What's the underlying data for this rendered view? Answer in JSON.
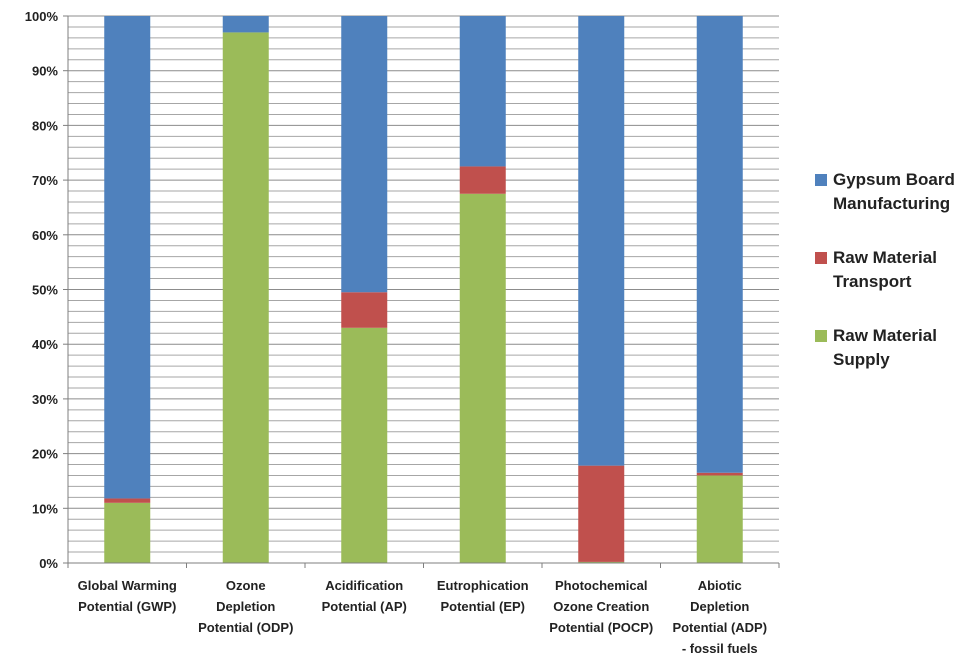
{
  "chart_data": {
    "type": "bar",
    "stacked": true,
    "percent": true,
    "categories": [
      [
        "Global Warming",
        "Potential (GWP)"
      ],
      [
        "Ozone",
        "Depletion",
        "Potential (ODP)"
      ],
      [
        "Acidification",
        "Potential (AP)"
      ],
      [
        "Eutrophication",
        "Potential (EP)"
      ],
      [
        "Photochemical",
        "Ozone Creation",
        "Potential (POCP)"
      ],
      [
        "Abiotic",
        "Depletion",
        "Potential (ADP)",
        "- fossil fuels"
      ]
    ],
    "series": [
      {
        "name": "Raw Material Supply",
        "color": "#9BBB59",
        "values": [
          11,
          97,
          43,
          67.5,
          0.2,
          16
        ]
      },
      {
        "name": "Raw Material Transport",
        "color": "#C0504D",
        "values": [
          0.8,
          0,
          6.5,
          5,
          17.6,
          0.5
        ]
      },
      {
        "name": "Gypsum Board Manufacturing",
        "color": "#4F81BD",
        "values": [
          88.2,
          3,
          50.5,
          27.5,
          82.2,
          83.5
        ]
      }
    ],
    "y_ticks": [
      "0%",
      "10%",
      "20%",
      "30%",
      "40%",
      "50%",
      "60%",
      "70%",
      "80%",
      "90%",
      "100%"
    ],
    "ylim": [
      0,
      100
    ],
    "grid": true,
    "legend_position": "right",
    "legend_labels": [
      {
        "lines": [
          "Gypsum Board",
          "Manufacturing"
        ],
        "color": "#4F81BD"
      },
      {
        "lines": [
          "Raw Material",
          "Transport"
        ],
        "color": "#C0504D"
      },
      {
        "lines": [
          "Raw Material",
          "Supply"
        ],
        "color": "#9BBB59"
      }
    ]
  }
}
